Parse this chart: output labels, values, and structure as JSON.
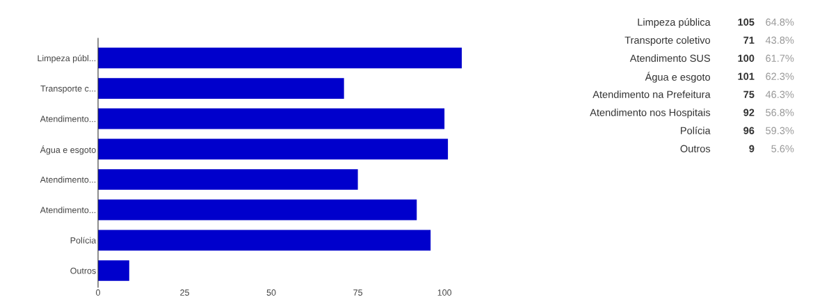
{
  "chart_data": [
    {
      "type": "bar",
      "orientation": "horizontal",
      "categories": [
        "Limpeza públ...",
        "Transporte c...",
        "Atendimento...",
        "Água e esgoto",
        "Atendimento...",
        "Atendimento...",
        "Polícia",
        "Outros"
      ],
      "values": [
        105,
        71,
        100,
        101,
        75,
        92,
        96,
        9
      ],
      "color": "#0000cc",
      "xlim": [
        0,
        106
      ],
      "xticks": [
        0,
        25,
        50,
        75,
        100
      ]
    },
    {
      "type": "other",
      "annotations": [
        "Limpeza pública",
        "105",
        "64.8%",
        "Transporte coletivo",
        "71",
        "43.8%",
        "Atendimento SUS",
        "100",
        "61.7%",
        "Água e esgoto",
        "101",
        "62.3%",
        "Atendimento na Prefeitura",
        "75",
        "46.3%",
        "Atendimento nos Hospitais",
        "92",
        "56.8%",
        "Polícia",
        "96",
        "59.3%",
        "Outros",
        "9",
        "5.6%"
      ]
    }
  ]
}
